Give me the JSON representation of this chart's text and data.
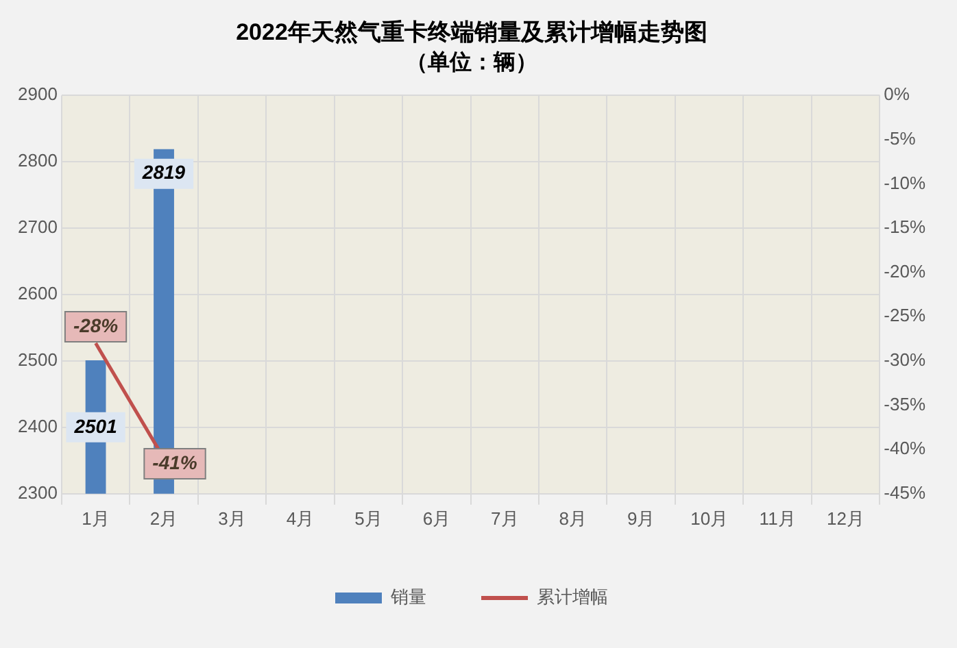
{
  "chart_data": {
    "type": "bar",
    "title": "2022年天然气重卡终端销量及累计增幅走势图",
    "subtitle": "（单位：辆）",
    "categories": [
      "1月",
      "2月",
      "3月",
      "4月",
      "5月",
      "6月",
      "7月",
      "8月",
      "9月",
      "10月",
      "11月",
      "12月"
    ],
    "series": [
      {
        "name": "销量",
        "color": "#4f81bd",
        "values": [
          2501,
          2819,
          null,
          null,
          null,
          null,
          null,
          null,
          null,
          null,
          null,
          null
        ]
      },
      {
        "name": "累计增幅",
        "type": "line",
        "axis": "y2",
        "color": "#c0504d",
        "values": [
          -28,
          -41,
          null,
          null,
          null,
          null,
          null,
          null,
          null,
          null,
          null,
          null
        ],
        "value_labels": [
          "-28%",
          "-41%",
          null,
          null,
          null,
          null,
          null,
          null,
          null,
          null,
          null,
          null
        ]
      }
    ],
    "ylim": [
      2300,
      2900
    ],
    "yticks": [
      2300,
      2400,
      2500,
      2600,
      2700,
      2800,
      2900
    ],
    "y2lim": [
      -45,
      0
    ],
    "y2ticks": [
      {
        "value": -45,
        "label": "-45%"
      },
      {
        "value": -40,
        "label": "-40%"
      },
      {
        "value": -35,
        "label": "-35%"
      },
      {
        "value": -30,
        "label": "-30%"
      },
      {
        "value": -25,
        "label": "-25%"
      },
      {
        "value": -20,
        "label": "-20%"
      },
      {
        "value": -15,
        "label": "-15%"
      },
      {
        "value": -10,
        "label": "-10%"
      },
      {
        "value": -5,
        "label": "-5%"
      },
      {
        "value": 0,
        "label": "0%"
      }
    ],
    "data_labels": true,
    "grid": true,
    "legend": "bottom",
    "marker": "none",
    "line_style": "solid"
  }
}
